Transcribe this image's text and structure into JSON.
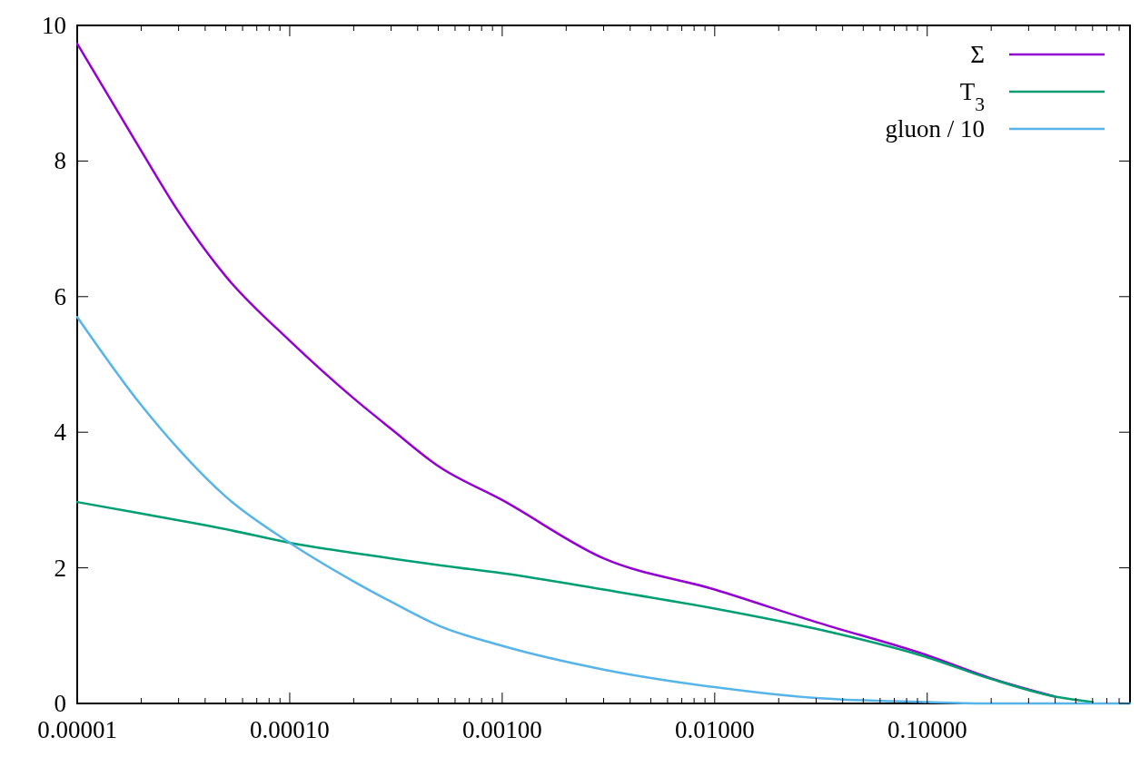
{
  "chart_data": {
    "type": "line",
    "log": "x",
    "grid": false,
    "legend": "top right",
    "line_style": "solid",
    "xlim": [
      1e-05,
      0.9
    ],
    "ylim": [
      0,
      10
    ],
    "xticks": [
      {
        "value": 1e-05,
        "label": "0.00001"
      },
      {
        "value": 2e-05,
        "label": null
      },
      {
        "value": 3e-05,
        "label": null
      },
      {
        "value": 4e-05,
        "label": null
      },
      {
        "value": 5e-05,
        "label": null
      },
      {
        "value": 6e-05,
        "label": null
      },
      {
        "value": 7e-05,
        "label": null
      },
      {
        "value": 8e-05,
        "label": null
      },
      {
        "value": 9e-05,
        "label": null
      },
      {
        "value": 0.0001,
        "label": "0.00010"
      },
      {
        "value": 0.0002,
        "label": null
      },
      {
        "value": 0.0003,
        "label": null
      },
      {
        "value": 0.0004,
        "label": null
      },
      {
        "value": 0.0005,
        "label": null
      },
      {
        "value": 0.0006,
        "label": null
      },
      {
        "value": 0.0007,
        "label": null
      },
      {
        "value": 0.0008,
        "label": null
      },
      {
        "value": 0.0009,
        "label": null
      },
      {
        "value": 0.001,
        "label": "0.00100"
      },
      {
        "value": 0.002,
        "label": null
      },
      {
        "value": 0.003,
        "label": null
      },
      {
        "value": 0.004,
        "label": null
      },
      {
        "value": 0.005,
        "label": null
      },
      {
        "value": 0.006,
        "label": null
      },
      {
        "value": 0.007,
        "label": null
      },
      {
        "value": 0.008,
        "label": null
      },
      {
        "value": 0.009,
        "label": null
      },
      {
        "value": 0.01,
        "label": "0.01000"
      },
      {
        "value": 0.02,
        "label": null
      },
      {
        "value": 0.03,
        "label": null
      },
      {
        "value": 0.04,
        "label": null
      },
      {
        "value": 0.05,
        "label": null
      },
      {
        "value": 0.06,
        "label": null
      },
      {
        "value": 0.07,
        "label": null
      },
      {
        "value": 0.08,
        "label": null
      },
      {
        "value": 0.09,
        "label": null
      },
      {
        "value": 0.1,
        "label": "0.10000"
      },
      {
        "value": 0.2,
        "label": null
      },
      {
        "value": 0.3,
        "label": null
      },
      {
        "value": 0.4,
        "label": null
      },
      {
        "value": 0.5,
        "label": null
      },
      {
        "value": 0.6,
        "label": null
      },
      {
        "value": 0.7,
        "label": null
      },
      {
        "value": 0.8,
        "label": null
      }
    ],
    "yticks": [
      0,
      2,
      4,
      6,
      8,
      10
    ],
    "x": [
      1e-05,
      2e-05,
      3e-05,
      5e-05,
      0.0001,
      0.0002,
      0.0003,
      0.0005,
      0.001,
      0.003,
      0.01,
      0.03,
      0.1,
      0.2,
      0.4,
      0.6,
      0.9
    ],
    "series": [
      {
        "name": "Σ",
        "color": "#9400d3",
        "values": [
          9.73,
          8.15,
          7.25,
          6.3,
          5.35,
          4.5,
          4.05,
          3.5,
          3.0,
          2.14,
          1.68,
          1.2,
          0.71,
          0.37,
          0.1,
          null,
          null
        ]
      },
      {
        "name": "T$_{3}$",
        "color": "#009e73",
        "values": [
          2.97,
          2.8,
          2.7,
          2.57,
          2.37,
          2.22,
          2.14,
          2.04,
          1.92,
          1.68,
          1.4,
          1.1,
          0.68,
          0.36,
          0.1,
          0.02,
          null
        ]
      },
      {
        "name": "gluon / 10",
        "color": "#56b4e9",
        "values": [
          5.7,
          4.4,
          3.75,
          3.05,
          2.37,
          1.8,
          1.5,
          1.15,
          0.85,
          0.5,
          0.24,
          0.08,
          0.02,
          0,
          0,
          0,
          0
        ]
      }
    ]
  }
}
